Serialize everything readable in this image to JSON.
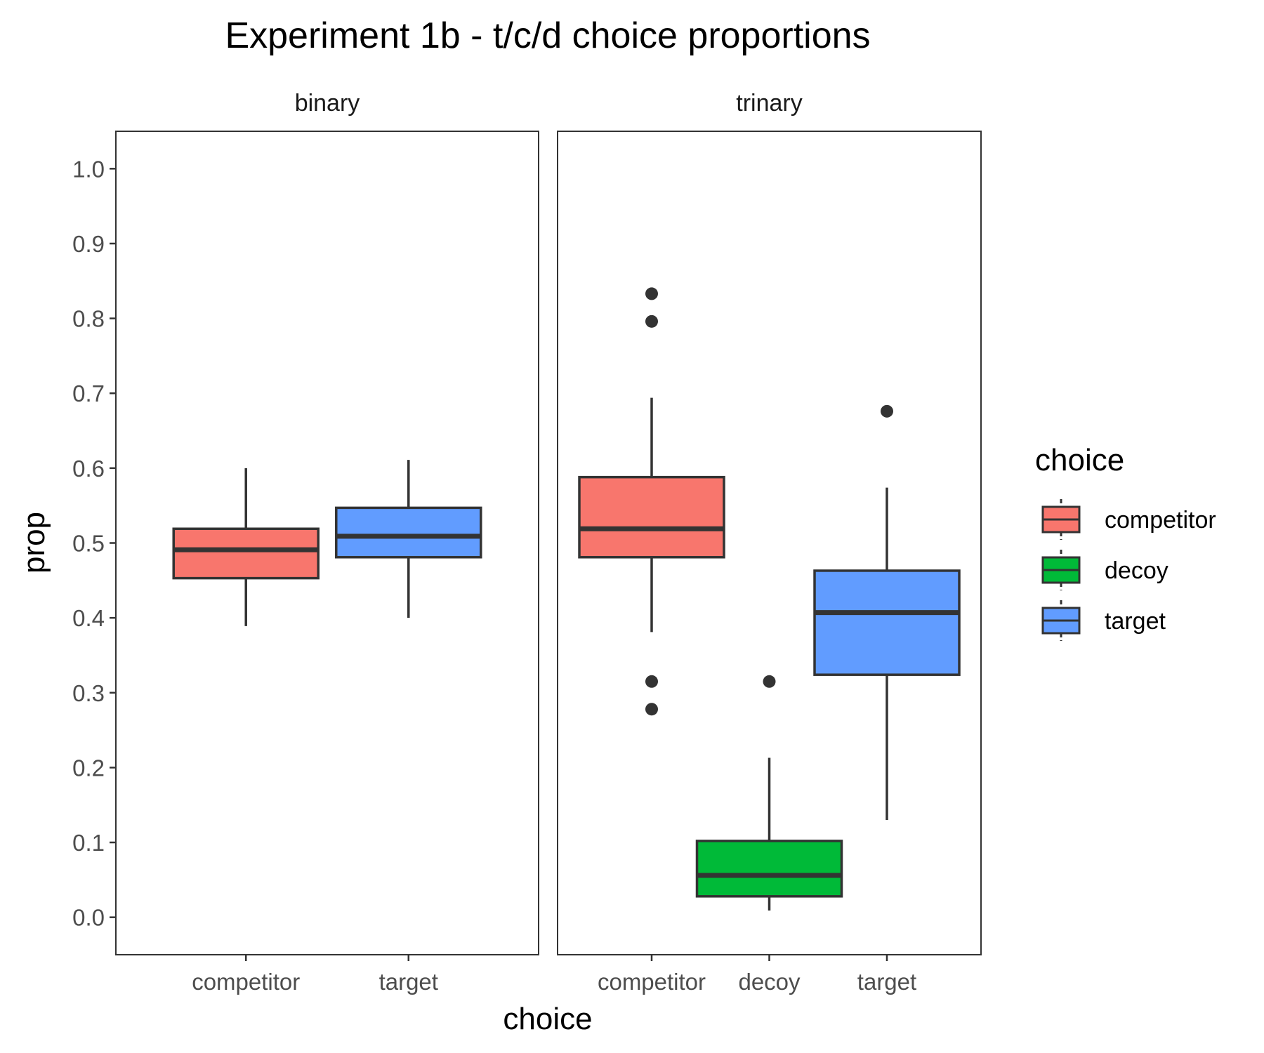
{
  "chart_data": {
    "type": "boxplot",
    "title": "Experiment 1b - t/c/d choice proportions",
    "xlabel": "choice",
    "ylabel": "prop",
    "ylim": [
      -0.05,
      1.05
    ],
    "yticks": [
      "0.0",
      "0.1",
      "0.2",
      "0.3",
      "0.4",
      "0.5",
      "0.6",
      "0.7",
      "0.8",
      "0.9",
      "1.0"
    ],
    "grid": false,
    "legend": {
      "title": "choice",
      "position": "right",
      "entries": [
        {
          "label": "competitor",
          "color": "#F8766D"
        },
        {
          "label": "decoy",
          "color": "#00BA38"
        },
        {
          "label": "target",
          "color": "#619CFF"
        }
      ]
    },
    "facets": [
      {
        "name": "binary",
        "categories": [
          "competitor",
          "target"
        ],
        "boxes": [
          {
            "category": "competitor",
            "color": "#F8766D",
            "whisker_low": 0.389,
            "q1": 0.453,
            "median": 0.491,
            "q3": 0.519,
            "whisker_high": 0.6,
            "outliers": []
          },
          {
            "category": "target",
            "color": "#619CFF",
            "whisker_low": 0.4,
            "q1": 0.481,
            "median": 0.509,
            "q3": 0.547,
            "whisker_high": 0.611,
            "outliers": []
          }
        ]
      },
      {
        "name": "trinary",
        "categories": [
          "competitor",
          "decoy",
          "target"
        ],
        "boxes": [
          {
            "category": "competitor",
            "color": "#F8766D",
            "whisker_low": 0.381,
            "q1": 0.481,
            "median": 0.519,
            "q3": 0.588,
            "whisker_high": 0.694,
            "outliers": [
              0.833,
              0.796,
              0.315,
              0.278
            ]
          },
          {
            "category": "decoy",
            "color": "#00BA38",
            "whisker_low": 0.009,
            "q1": 0.028,
            "median": 0.056,
            "q3": 0.102,
            "whisker_high": 0.213,
            "outliers": [
              0.315
            ]
          },
          {
            "category": "target",
            "color": "#619CFF",
            "whisker_low": 0.13,
            "q1": 0.324,
            "median": 0.407,
            "q3": 0.463,
            "whisker_high": 0.574,
            "outliers": [
              0.676
            ]
          }
        ]
      }
    ]
  }
}
